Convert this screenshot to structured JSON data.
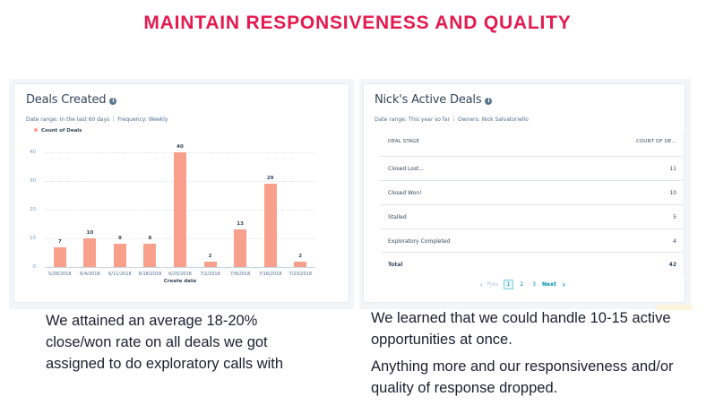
{
  "page": {
    "title": "MAINTAIN RESPONSIVENESS AND QUALITY",
    "title_color": "#e6194f"
  },
  "deals_created": {
    "title": "Deals Created",
    "info_icon": "info-icon",
    "date_range_label": "Date range: In the last 60 days",
    "frequency_label": "Frequency: Weekly",
    "legend_label": "Count of Deals",
    "bar_color": "#f8a08b"
  },
  "chart_data": {
    "type": "bar",
    "title": "Deals Created",
    "subtitle": "Date range: In the last 60 days | Frequency: Weekly",
    "categories": [
      "5/28/2018",
      "6/4/2018",
      "6/11/2018",
      "6/18/2018",
      "6/25/2018",
      "7/2/2018",
      "7/9/2018",
      "7/16/2018",
      "7/23/2018"
    ],
    "series": [
      {
        "name": "Count of Deals",
        "values": [
          7,
          10,
          8,
          8,
          40,
          2,
          13,
          29,
          2
        ],
        "color": "#f8a08b"
      }
    ],
    "xlabel": "Create date",
    "ylabel": "",
    "yticks": [
      0,
      10,
      20,
      30,
      40
    ],
    "ylim": [
      0,
      40
    ],
    "grid": true,
    "legend_position": "top-left",
    "data_labels": true
  },
  "active_deals": {
    "title": "Nick's Active Deals",
    "info_icon": "info-icon",
    "date_range_label": "Date range: This year so far",
    "owners_label": "Owners: Nick Salvatoriello",
    "table": {
      "columns": [
        "DEAL STAGE",
        "COUNT OF DE..."
      ],
      "rows": [
        {
          "stage": "Closed Lost...",
          "count": "11"
        },
        {
          "stage": "Closed Won!",
          "count": "10"
        },
        {
          "stage": "Stalled",
          "count": "5"
        },
        {
          "stage": "Exploratory Completed",
          "count": "4"
        }
      ],
      "total": {
        "label": "Total",
        "count": "42"
      }
    },
    "pagination": {
      "prev_label": "Prev",
      "pages": [
        "1",
        "2",
        "3"
      ],
      "current_page": "1",
      "next_label": "Next",
      "prev_icon": "chevron-left-icon",
      "next_icon": "chevron-right-icon"
    }
  },
  "captions": {
    "left": "We attained an average 18-20% close/won rate on all deals we got assigned to do exploratory calls with",
    "right_1": "We learned that we could handle 10-15 active opportunities at once.",
    "right_2": "Anything more and our responsiveness and/or quality of response dropped."
  }
}
